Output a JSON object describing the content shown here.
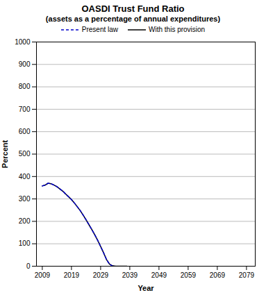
{
  "chart_data": {
    "type": "line",
    "title": "OASDI Trust Fund Ratio",
    "subtitle": "(assets as a percentage of annual expenditures)",
    "xlabel": "Year",
    "ylabel": "Percent",
    "xlim": [
      2007,
      2082
    ],
    "ylim": [
      0,
      1000
    ],
    "xticks": [
      2009,
      2019,
      2029,
      2039,
      2049,
      2059,
      2069,
      2079
    ],
    "yticks": [
      0,
      100,
      200,
      300,
      400,
      500,
      600,
      700,
      800,
      900,
      1000
    ],
    "grid": "y",
    "legend": "top",
    "series": [
      {
        "name": "Present law",
        "color": "#0000cc",
        "line_style": "dashed",
        "x": [
          2009,
          2010,
          2011,
          2012,
          2013,
          2014,
          2015,
          2016,
          2017,
          2018,
          2019,
          2020,
          2021,
          2022,
          2023,
          2024,
          2025,
          2026,
          2027,
          2028,
          2029,
          2030,
          2031,
          2032,
          2033,
          2034
        ],
        "values": [
          358,
          362,
          370,
          368,
          362,
          355,
          345,
          335,
          322,
          310,
          297,
          282,
          265,
          248,
          228,
          207,
          185,
          163,
          140,
          115,
          88,
          60,
          30,
          10,
          1,
          0
        ]
      },
      {
        "name": "With this provision",
        "color": "#000000",
        "line_style": "solid",
        "x": [
          2009,
          2010,
          2011,
          2012,
          2013,
          2014,
          2015,
          2016,
          2017,
          2018,
          2019,
          2020,
          2021,
          2022,
          2023,
          2024,
          2025,
          2026,
          2027,
          2028,
          2029,
          2030,
          2031,
          2032,
          2033,
          2034,
          2035,
          2036,
          2037,
          2038
        ],
        "values": [
          358,
          362,
          370,
          368,
          362,
          355,
          345,
          335,
          322,
          310,
          297,
          282,
          265,
          248,
          228,
          207,
          185,
          163,
          140,
          115,
          88,
          60,
          30,
          10,
          2,
          0,
          0,
          0,
          0,
          0
        ]
      }
    ]
  }
}
